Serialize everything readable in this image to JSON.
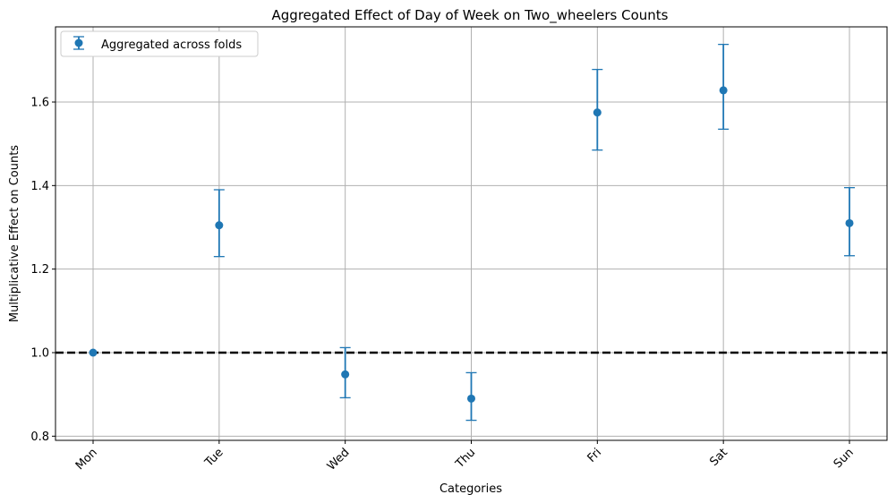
{
  "chart_data": {
    "type": "scatter",
    "title": "Aggregated Effect of Day of Week on Two_wheelers Counts",
    "xlabel": "Categories",
    "ylabel": "Multiplicative Effect on Counts",
    "categories": [
      "Mon",
      "Tue",
      "Wed",
      "Thu",
      "Fri",
      "Sat",
      "Sun"
    ],
    "series": [
      {
        "name": "Aggregated across folds",
        "values": [
          1.0,
          1.305,
          0.948,
          0.89,
          1.575,
          1.628,
          1.31
        ],
        "error_low": [
          1.0,
          1.23,
          0.892,
          0.838,
          1.485,
          1.535,
          1.232
        ],
        "error_high": [
          1.0,
          1.39,
          1.012,
          0.952,
          1.678,
          1.738,
          1.395
        ]
      }
    ],
    "reference_line": {
      "y": 1.0,
      "style": "dashed",
      "color": "#000000"
    },
    "ylim": [
      0.79,
      1.78
    ],
    "yticks": [
      0.8,
      1.0,
      1.2,
      1.4,
      1.6
    ],
    "ytick_labels": [
      "0.8",
      "1.0",
      "1.2",
      "1.4",
      "1.6"
    ],
    "grid": true,
    "legend_position": "top-left",
    "marker_color": "#1f77b4",
    "xtick_rotation": 45
  }
}
